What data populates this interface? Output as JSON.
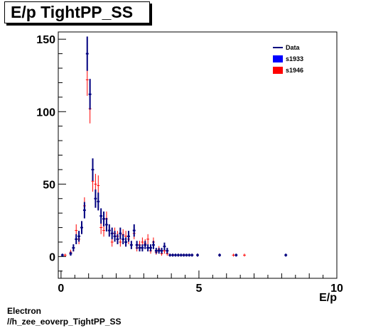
{
  "caption": {
    "line1": "Electron",
    "line2": "//h_zee_eoverp_TightPP_SS"
  },
  "chart_data": {
    "type": "scatter",
    "title": "E/p TightPP_SS",
    "xlabel": "E/p",
    "ylabel": "",
    "xlim": [
      -0.1,
      10.0
    ],
    "ylim": [
      -15,
      155
    ],
    "xticks": [
      0,
      5,
      10
    ],
    "yticks": [
      0,
      50,
      100,
      150
    ],
    "grid": false,
    "legend_position": "top-right",
    "colors": {
      "Data": "#00007f",
      "s1933": "#0000ff",
      "s1946": "#ff0000"
    },
    "series": [
      {
        "name": "s1946",
        "style": "markers-with-errorbars",
        "x": [
          0.15,
          0.35,
          0.45,
          0.55,
          0.65,
          0.75,
          0.85,
          0.95,
          1.05,
          1.15,
          1.25,
          1.35,
          1.45,
          1.55,
          1.65,
          1.75,
          1.85,
          1.95,
          2.05,
          2.15,
          2.25,
          2.35,
          2.45,
          2.55,
          2.65,
          2.75,
          2.85,
          2.95,
          3.05,
          3.15,
          3.25,
          3.35,
          3.45,
          3.55,
          3.65,
          3.75,
          3.85,
          3.95,
          4.05,
          4.25,
          4.45,
          4.75,
          4.95,
          5.75,
          6.25,
          6.65
        ],
        "y": [
          1,
          3,
          6,
          18,
          12,
          20,
          35,
          122,
          102,
          52,
          50,
          49,
          20,
          18,
          26,
          18,
          10,
          16,
          14,
          10,
          15,
          14,
          12,
          8,
          16,
          6,
          8,
          10,
          9,
          12,
          4,
          10,
          3,
          5,
          2,
          4,
          2,
          1,
          1,
          1,
          1,
          1,
          1,
          1,
          1,
          1
        ]
      },
      {
        "name": "Data",
        "style": "markers-with-errorbars",
        "x": [
          0.05,
          0.35,
          0.45,
          0.55,
          0.65,
          0.75,
          0.85,
          0.95,
          1.05,
          1.15,
          1.25,
          1.35,
          1.45,
          1.55,
          1.65,
          1.75,
          1.85,
          1.95,
          2.05,
          2.15,
          2.25,
          2.35,
          2.45,
          2.55,
          2.65,
          2.75,
          2.85,
          2.95,
          3.05,
          3.15,
          3.25,
          3.35,
          3.45,
          3.55,
          3.65,
          3.75,
          3.85,
          3.95,
          4.05,
          4.15,
          4.25,
          4.35,
          4.45,
          4.55,
          4.65,
          4.75,
          4.95,
          5.75,
          6.35,
          8.15
        ],
        "y": [
          1,
          2,
          6,
          12,
          14,
          20,
          32,
          140,
          112,
          60,
          40,
          38,
          28,
          26,
          22,
          18,
          16,
          14,
          12,
          16,
          12,
          10,
          14,
          8,
          18,
          8,
          6,
          6,
          8,
          6,
          6,
          8,
          4,
          4,
          4,
          7,
          4,
          1,
          1,
          1,
          1,
          1,
          1,
          1,
          1,
          1,
          1,
          1,
          1,
          1
        ]
      }
    ],
    "legend": [
      {
        "label": "Data",
        "style": "line"
      },
      {
        "label": "s1933",
        "style": "box"
      },
      {
        "label": "s1946",
        "style": "box"
      }
    ]
  }
}
